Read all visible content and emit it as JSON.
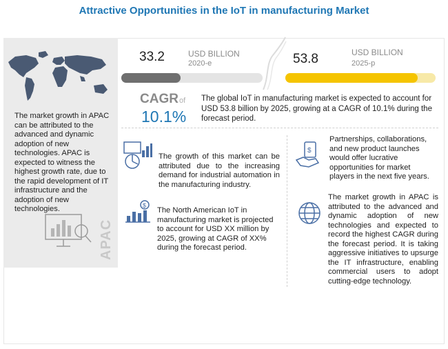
{
  "title": "Attractive Opportunities in the IoT in manufacturing Market",
  "colors": {
    "title": "#1f77b4",
    "bar_2020": "#6f6f6f",
    "bar_2025": "#f5c400",
    "cagr": "#1f77b4"
  },
  "stats": {
    "value_2020": "33.2",
    "unit_2020": "USD BILLION",
    "year_2020": "2020-e",
    "value_2025": "53.8",
    "unit_2025": "USD BILLION",
    "year_2025": "2025-p",
    "bar_fill_2020": 0.42,
    "bar_fill_2025": 0.88
  },
  "cagr": {
    "label": "CAGR",
    "of": "of",
    "value": "10.1%"
  },
  "global_text": "The global IoT in manufacturing market is expected to account for USD 53.8 billion by 2025, growing at a CAGR of 10.1% during the forecast period.",
  "apac_panel": {
    "text": "The market growth in APAC can be attributed to the advanced and dynamic adoption of new technologies. APAC is expected to witness the highest growth rate, due to the rapid development of IT infrastructure and the adoption of new technologies.",
    "vertical_label": "APAC"
  },
  "blocks": {
    "growth": "The growth of this market can be attributed due to the increasing demand for industrial automation in the manufacturing industry.",
    "north_america": "The North American IoT in manufacturing market is projected to account for USD XX million by 2025, growing at CAGR of XX% during the forecast period.",
    "partnerships": "Partnerships, collaborations, and new product launches would offer lucrative opportunities for market players in the next five years.",
    "apac_growth": "The market growth in APAC is attributed to the advanced and dynamic adoption of new technologies and expected to record the highest CAGR during the forecast period. It is taking aggressive initiatives to upsurge the IT infrastructure, enabling commercial users to adopt cutting-edge technology."
  },
  "icons": [
    "world-map-icon",
    "analytics-presentation-icon",
    "growth-chart-icon",
    "dollar-bar-chart-icon",
    "handshake-money-icon",
    "globe-icon"
  ]
}
